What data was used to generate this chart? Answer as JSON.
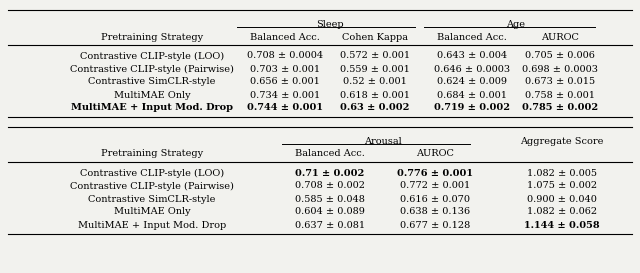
{
  "bg_color": "#f2f2ee",
  "font_size": 7.0,
  "table1": {
    "group_headers": [
      "Sleep",
      "Age"
    ],
    "col_headers": [
      "Balanced Acc.",
      "Cohen Kappa",
      "Balanced Acc.",
      "AUROC"
    ],
    "row_header_label": "Pretraining Strategy",
    "rows": [
      [
        "Contrastive CLIP-style (LOO)",
        "0.708 ± 0.0004",
        "0.572 ± 0.001",
        "0.643 ± 0.004",
        "0.705 ± 0.006"
      ],
      [
        "Contrastive CLIP-style (Pairwise)",
        "0.703 ± 0.001",
        "0.559 ± 0.001",
        "0.646 ± 0.0003",
        "0.698 ± 0.0003"
      ],
      [
        "Contrastive SimCLR-style",
        "0.656 ± 0.001",
        "0.52 ± 0.001",
        "0.624 ± 0.009",
        "0.673 ± 0.015"
      ],
      [
        "MultiMAE Only",
        "0.734 ± 0.001",
        "0.618 ± 0.001",
        "0.684 ± 0.001",
        "0.758 ± 0.001"
      ],
      [
        "MultiMAE + Input Mod. Drop",
        "0.744 ± 0.001",
        "0.63 ± 0.002",
        "0.719 ± 0.002",
        "0.785 ± 0.002"
      ]
    ],
    "bold_row": 4,
    "sleep_group_span": [
      0,
      1
    ],
    "age_group_span": [
      2,
      3
    ]
  },
  "table2": {
    "group_headers": [
      "Arousal",
      "Aggregate Score"
    ],
    "col_headers": [
      "Balanced Acc.",
      "AUROC"
    ],
    "row_header_label": "Pretraining Strategy",
    "rows": [
      [
        "Contrastive CLIP-style (LOO)",
        "0.71 ± 0.002",
        "0.776 ± 0.001",
        "1.082 ± 0.005"
      ],
      [
        "Contrastive CLIP-style (Pairwise)",
        "0.708 ± 0.002",
        "0.772 ± 0.001",
        "1.075 ± 0.002"
      ],
      [
        "Contrastive SimCLR-style",
        "0.585 ± 0.048",
        "0.616 ± 0.070",
        "0.900 ± 0.040"
      ],
      [
        "MultiMAE Only",
        "0.604 ± 0.089",
        "0.638 ± 0.136",
        "1.082 ± 0.062"
      ],
      [
        "MultiMAE + Input Mod. Drop",
        "0.637 ± 0.081",
        "0.677 ± 0.128",
        "1.144 ± 0.058"
      ]
    ],
    "bold_row0_cols": [
      1,
      2
    ],
    "bold_row4_col": 3
  }
}
